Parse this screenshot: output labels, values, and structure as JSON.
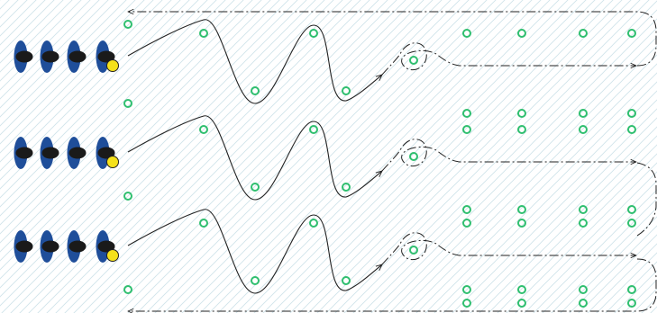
{
  "diagram": {
    "colors": {
      "background": "#ffffff",
      "pattern": "#cfe3ea",
      "player_body": "#1f4e9a",
      "player_head": "#1a1a1a",
      "ball": "#f5e11a",
      "cone": "#2fbf6f",
      "path": "#222222"
    },
    "rows": [
      {
        "id": "row-1",
        "players": 4,
        "has_ball": true
      },
      {
        "id": "row-2",
        "players": 4,
        "has_ball": true
      },
      {
        "id": "row-3",
        "players": 4,
        "has_ball": true
      }
    ],
    "icons": {
      "player": "player-icon",
      "ball": "ball-icon",
      "cone": "cone-marker-icon"
    },
    "line_styles": {
      "dribble": "solid",
      "pass": "dash-dot",
      "return_run": "dash-dot"
    }
  }
}
